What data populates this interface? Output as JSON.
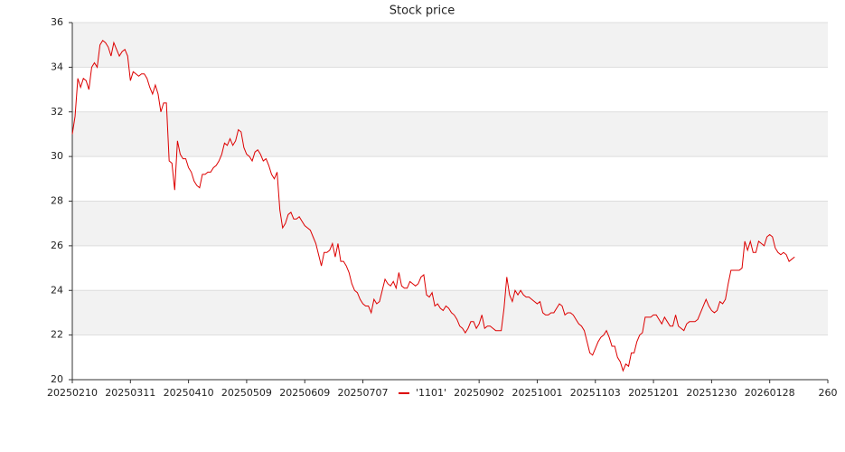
{
  "chart_data": {
    "type": "line",
    "title": "Stock price",
    "categories": [
      "20250210",
      null,
      null,
      null,
      null,
      null,
      null,
      null,
      null,
      null,
      null,
      null,
      null,
      null,
      null,
      null,
      null,
      null,
      null,
      null,
      null,
      "20250311",
      null,
      null,
      null,
      null,
      null,
      null,
      null,
      null,
      null,
      null,
      null,
      null,
      null,
      null,
      null,
      null,
      null,
      null,
      null,
      null,
      "20250410",
      null,
      null,
      null,
      null,
      null,
      null,
      null,
      null,
      null,
      null,
      null,
      null,
      null,
      null,
      null,
      null,
      null,
      null,
      null,
      null,
      "20250509",
      null,
      null,
      null,
      null,
      null,
      null,
      null,
      null,
      null,
      null,
      null,
      null,
      null,
      null,
      null,
      null,
      null,
      null,
      null,
      null,
      "20250609",
      null,
      null,
      null,
      null,
      null,
      null,
      null,
      null,
      null,
      null,
      null,
      null,
      null,
      null,
      null,
      null,
      null,
      null,
      null,
      null,
      "20250707",
      null,
      null,
      null,
      null,
      null,
      null,
      null,
      null,
      null,
      null,
      null,
      null,
      null,
      null,
      null,
      null,
      null,
      null,
      null,
      null,
      null,
      null,
      null,
      null,
      null,
      null,
      null,
      null,
      null,
      null,
      null,
      null,
      null,
      null,
      null,
      null,
      null,
      null,
      null,
      null,
      null,
      "20250902",
      null,
      null,
      null,
      null,
      null,
      null,
      null,
      null,
      null,
      null,
      null,
      null,
      null,
      null,
      null,
      null,
      null,
      null,
      null,
      null,
      "20251001",
      null,
      null,
      null,
      null,
      null,
      null,
      null,
      null,
      null,
      null,
      null,
      null,
      null,
      null,
      null,
      null,
      null,
      null,
      null,
      null,
      "20251103",
      null,
      null,
      null,
      null,
      null,
      null,
      null,
      null,
      null,
      null,
      null,
      null,
      null,
      null,
      null,
      null,
      null,
      null,
      null,
      null,
      "20251201",
      null,
      null,
      null,
      null,
      null,
      null,
      null,
      null,
      null,
      null,
      null,
      null,
      null,
      null,
      null,
      null,
      null,
      null,
      null,
      null,
      "20251230",
      null,
      null,
      null,
      null,
      null,
      null,
      null,
      null,
      null,
      null,
      null,
      null,
      null,
      null,
      null,
      null,
      null,
      null,
      null,
      null,
      "20260128",
      null,
      null,
      null,
      null,
      null,
      null,
      null,
      null,
      null,
      null,
      null,
      null,
      null,
      null,
      null,
      null,
      null,
      null,
      null,
      null,
      "260"
    ],
    "series": [
      {
        "name": "'1101'",
        "color": "#dd0000",
        "values": [
          31.0,
          31.8,
          33.5,
          33.1,
          33.5,
          33.4,
          33.0,
          34.0,
          34.2,
          34.0,
          35.0,
          35.2,
          35.1,
          34.9,
          34.5,
          35.1,
          34.8,
          34.5,
          34.7,
          34.8,
          34.5,
          33.4,
          33.8,
          33.7,
          33.6,
          33.7,
          33.7,
          33.5,
          33.1,
          32.8,
          33.2,
          32.8,
          32.0,
          32.4,
          32.4,
          29.8,
          29.7,
          28.5,
          30.7,
          30.1,
          29.9,
          29.9,
          29.5,
          29.3,
          28.9,
          28.7,
          28.6,
          29.2,
          29.2,
          29.3,
          29.3,
          29.5,
          29.6,
          29.8,
          30.1,
          30.6,
          30.5,
          30.8,
          30.5,
          30.7,
          31.2,
          31.1,
          30.4,
          30.1,
          30.0,
          29.8,
          30.2,
          30.3,
          30.1,
          29.8,
          29.9,
          29.6,
          29.2,
          29.0,
          29.3,
          27.6,
          26.8,
          27.0,
          27.4,
          27.5,
          27.2,
          27.2,
          27.3,
          27.1,
          26.9,
          26.8,
          26.7,
          26.4,
          26.1,
          25.6,
          25.1,
          25.7,
          25.7,
          25.8,
          26.1,
          25.5,
          26.1,
          25.3,
          25.3,
          25.1,
          24.8,
          24.3,
          24.0,
          23.9,
          23.6,
          23.4,
          23.3,
          23.3,
          23.0,
          23.6,
          23.4,
          23.5,
          24.0,
          24.5,
          24.3,
          24.2,
          24.4,
          24.1,
          24.8,
          24.2,
          24.1,
          24.1,
          24.4,
          24.3,
          24.2,
          24.3,
          24.6,
          24.7,
          23.8,
          23.7,
          23.9,
          23.3,
          23.4,
          23.2,
          23.1,
          23.3,
          23.2,
          23.0,
          22.9,
          22.7,
          22.4,
          22.3,
          22.1,
          22.3,
          22.6,
          22.6,
          22.3,
          22.5,
          22.9,
          22.3,
          22.4,
          22.4,
          22.3,
          22.2,
          22.2,
          22.2,
          23.2,
          24.6,
          23.8,
          23.5,
          24.0,
          23.8,
          24.0,
          23.8,
          23.7,
          23.7,
          23.6,
          23.5,
          23.4,
          23.5,
          23.0,
          22.9,
          22.9,
          23.0,
          23.0,
          23.2,
          23.4,
          23.3,
          22.9,
          23.0,
          23.0,
          22.9,
          22.7,
          22.5,
          22.4,
          22.2,
          21.7,
          21.2,
          21.1,
          21.4,
          21.7,
          21.9,
          22.0,
          22.2,
          21.9,
          21.5,
          21.5,
          21.0,
          20.8,
          20.4,
          20.7,
          20.6,
          21.2,
          21.2,
          21.7,
          22.0,
          22.1,
          22.8,
          22.8,
          22.8,
          22.9,
          22.9,
          22.7,
          22.5,
          22.8,
          22.6,
          22.4,
          22.4,
          22.9,
          22.4,
          22.3,
          22.2,
          22.5,
          22.6,
          22.6,
          22.6,
          22.7,
          23.0,
          23.3,
          23.6,
          23.3,
          23.1,
          23.0,
          23.1,
          23.5,
          23.4,
          23.6,
          24.3,
          24.9,
          24.9,
          24.9,
          24.9,
          25.0,
          26.2,
          25.8,
          26.2,
          25.7,
          25.7,
          26.2,
          26.1,
          26.0,
          26.4,
          26.5,
          26.4,
          25.9,
          25.7,
          25.6,
          25.7,
          25.6,
          25.3,
          25.4,
          25.5,
          null,
          null,
          null,
          null,
          null,
          null,
          null,
          null,
          null,
          null,
          null,
          null
        ]
      }
    ],
    "ylim": [
      20,
      36
    ],
    "yticks": [
      20,
      22,
      24,
      26,
      28,
      30,
      32,
      34,
      36
    ],
    "grid": true
  }
}
